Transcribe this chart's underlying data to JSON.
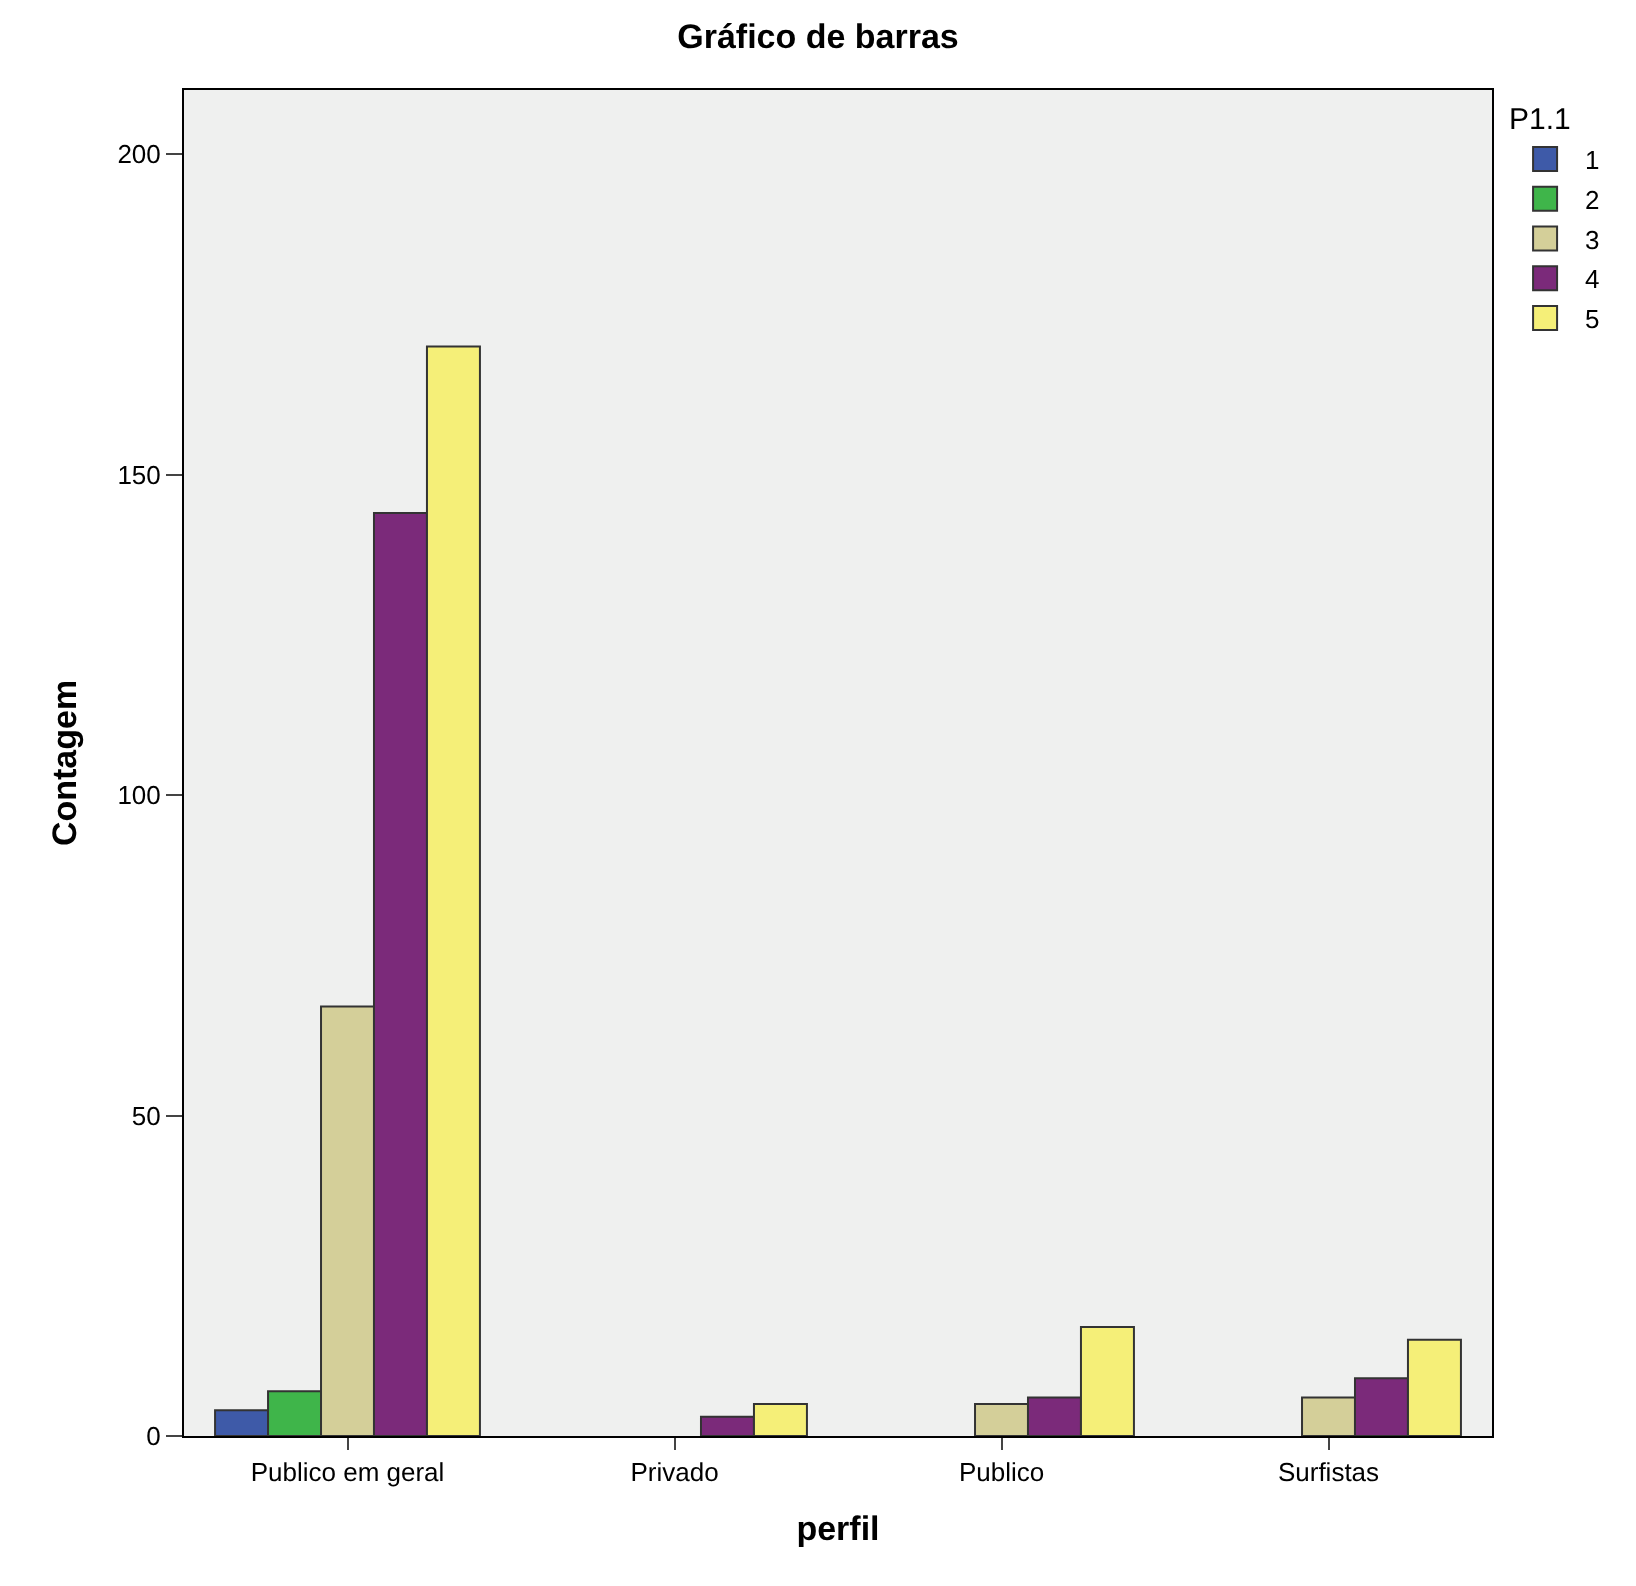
{
  "chart_data": {
    "type": "bar",
    "title": "Gráfico de barras",
    "xlabel": "perfil",
    "ylabel": "Contagem",
    "legend_title": "P1.1",
    "categories": [
      "Publico em geral",
      "Privado",
      "Publico",
      "Surfistas"
    ],
    "series": [
      {
        "name": "1",
        "color": "#3e5aa8",
        "values": [
          4,
          null,
          null,
          null
        ]
      },
      {
        "name": "2",
        "color": "#3fb54a",
        "values": [
          7,
          null,
          null,
          null
        ]
      },
      {
        "name": "3",
        "color": "#d4cf99",
        "values": [
          67,
          null,
          5,
          6
        ]
      },
      {
        "name": "4",
        "color": "#7b2a7a",
        "values": [
          144,
          3,
          6,
          9
        ]
      },
      {
        "name": "5",
        "color": "#f5ef78",
        "values": [
          170,
          5,
          17,
          15
        ]
      }
    ],
    "ylim": [
      0,
      210
    ],
    "yticks": [
      0,
      50,
      100,
      150,
      200
    ],
    "grid": false,
    "legend": "top right"
  }
}
